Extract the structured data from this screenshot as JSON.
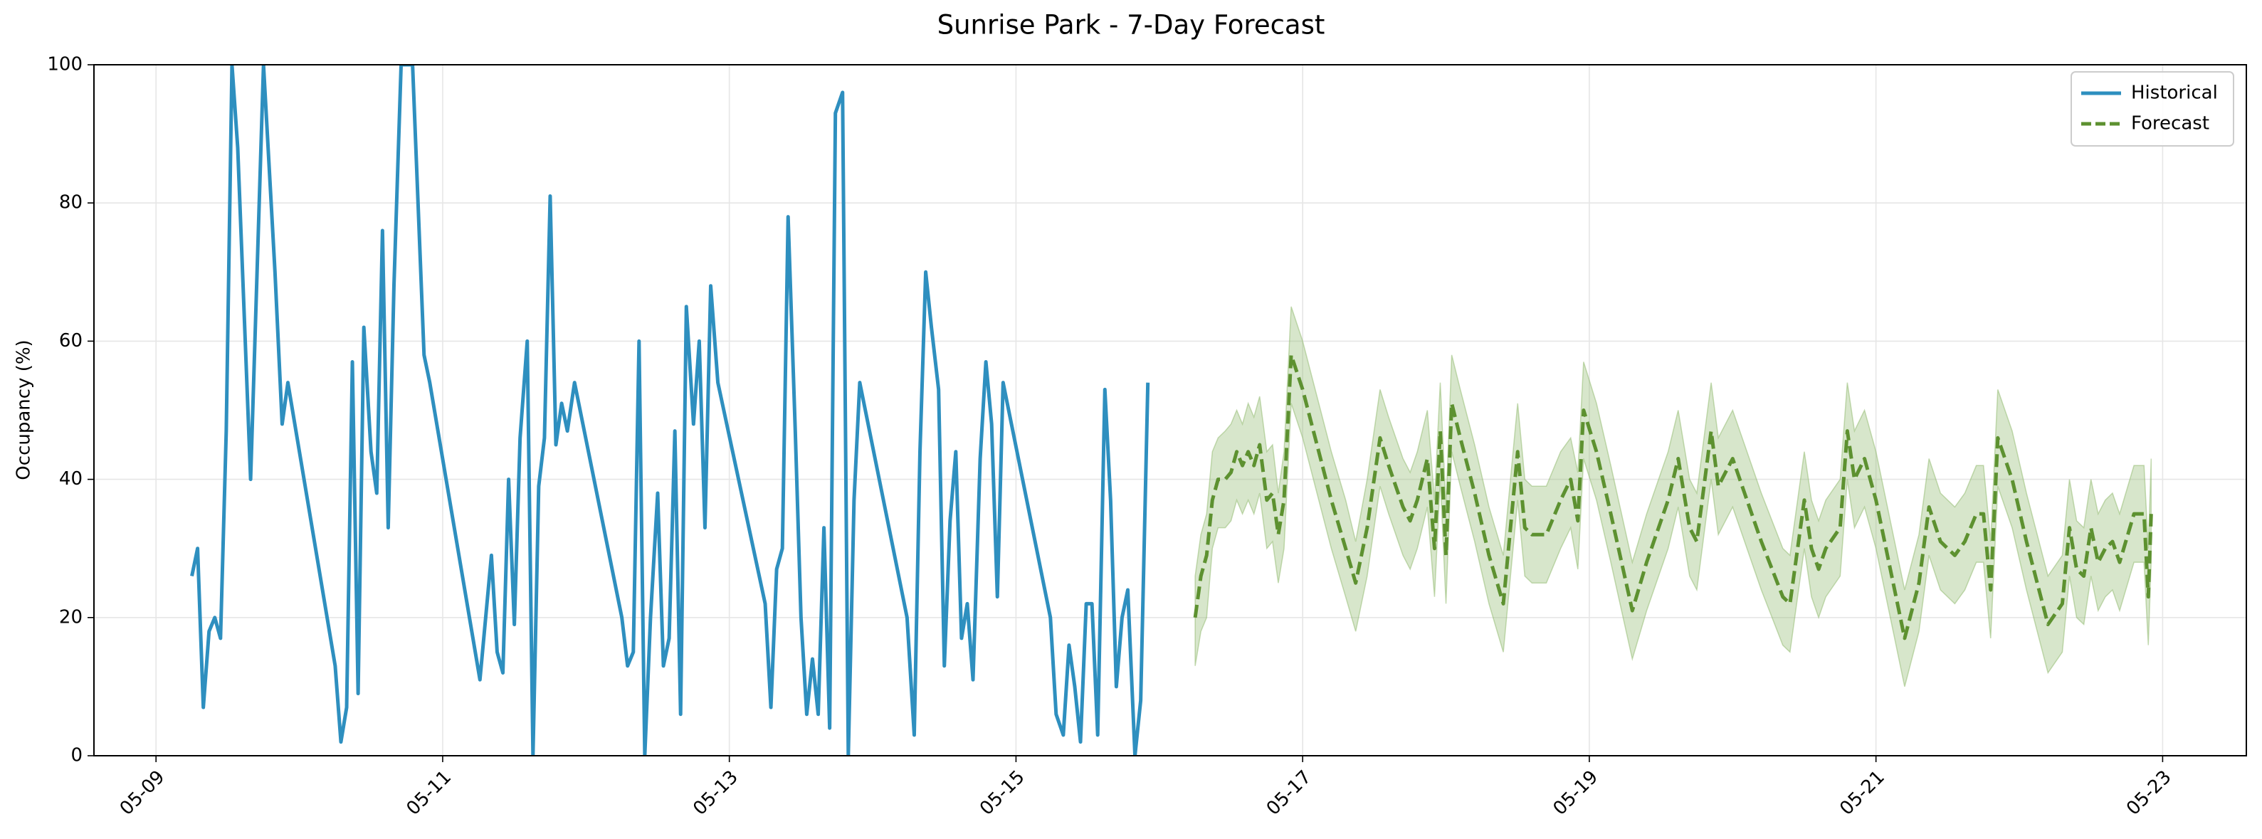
{
  "chart_data": {
    "type": "line",
    "title": "Sunrise Park - 7-Day Forecast",
    "ylabel": "Occupancy (%)",
    "xlim": [
      8.567,
      23.584
    ],
    "ylim": [
      0,
      100
    ],
    "xticks": [
      {
        "value": 9,
        "label": "05-09"
      },
      {
        "value": 11,
        "label": "05-11"
      },
      {
        "value": 13,
        "label": "05-13"
      },
      {
        "value": 15,
        "label": "05-15"
      },
      {
        "value": 17,
        "label": "05-17"
      },
      {
        "value": 19,
        "label": "05-19"
      },
      {
        "value": 21,
        "label": "05-21"
      },
      {
        "value": 23,
        "label": "05-23"
      }
    ],
    "yticks": [
      0,
      20,
      40,
      60,
      80,
      100
    ],
    "grid": true,
    "legend": "upper right",
    "series": [
      {
        "name": "Historical",
        "color": "#2e8fbf",
        "style": "solid",
        "x": [
          9.25,
          9.29,
          9.33,
          9.37,
          9.41,
          9.45,
          9.49,
          9.53,
          9.57,
          9.66,
          9.75,
          9.83,
          9.88,
          9.92,
          10.25,
          10.29,
          10.33,
          10.37,
          10.41,
          10.45,
          10.5,
          10.54,
          10.58,
          10.62,
          10.66,
          10.71,
          10.79,
          10.87,
          10.91,
          11.26,
          11.34,
          11.38,
          11.42,
          11.46,
          11.5,
          11.54,
          11.59,
          11.63,
          11.67,
          11.71,
          11.75,
          11.79,
          11.83,
          11.87,
          11.92,
          12.25,
          12.29,
          12.33,
          12.37,
          12.41,
          12.45,
          12.5,
          12.54,
          12.58,
          12.62,
          12.66,
          12.7,
          12.75,
          12.79,
          12.83,
          12.87,
          12.92,
          13.25,
          13.29,
          13.33,
          13.37,
          13.41,
          13.46,
          13.5,
          13.54,
          13.58,
          13.62,
          13.66,
          13.7,
          13.74,
          13.79,
          13.83,
          13.87,
          13.91,
          14.24,
          14.29,
          14.33,
          14.37,
          14.41,
          14.46,
          14.5,
          14.54,
          14.58,
          14.62,
          14.66,
          14.7,
          14.75,
          14.79,
          14.83,
          14.87,
          14.91,
          15.24,
          15.28,
          15.33,
          15.37,
          15.41,
          15.45,
          15.49,
          15.53,
          15.57,
          15.62,
          15.66,
          15.7,
          15.74,
          15.78,
          15.83,
          15.87,
          15.92
        ],
        "values": [
          26,
          30,
          7,
          18,
          20,
          17,
          47,
          100,
          88,
          40,
          100,
          70,
          48,
          54,
          13,
          2,
          7,
          57,
          9,
          62,
          44,
          38,
          76,
          33,
          68,
          100,
          100,
          58,
          54,
          11,
          29,
          15,
          12,
          40,
          19,
          46,
          60,
          0,
          39,
          46,
          81,
          45,
          51,
          47,
          54,
          20,
          13,
          15,
          60,
          0,
          20,
          38,
          13,
          17,
          47,
          6,
          65,
          48,
          60,
          33,
          68,
          54,
          22,
          7,
          27,
          30,
          78,
          47,
          20,
          6,
          14,
          6,
          33,
          4,
          93,
          96,
          0,
          37,
          54,
          20,
          3,
          44,
          70,
          62,
          53,
          13,
          34,
          44,
          17,
          22,
          11,
          43,
          57,
          48,
          23,
          54,
          20,
          6,
          3,
          16,
          10,
          2,
          22,
          22,
          3,
          53,
          37,
          10,
          20,
          24,
          0,
          8,
          54
        ]
      },
      {
        "name": "Forecast",
        "color": "#5d9130",
        "style": "dashed",
        "band_color": "#8db86a",
        "x": [
          16.25,
          16.29,
          16.33,
          16.37,
          16.41,
          16.46,
          16.5,
          16.54,
          16.58,
          16.62,
          16.66,
          16.7,
          16.75,
          16.79,
          16.83,
          16.87,
          16.92,
          17.0,
          17.1,
          17.2,
          17.3,
          17.37,
          17.45,
          17.54,
          17.6,
          17.7,
          17.75,
          17.8,
          17.87,
          17.92,
          17.96,
          18.0,
          18.04,
          18.1,
          18.2,
          18.3,
          18.4,
          18.5,
          18.55,
          18.6,
          18.7,
          18.8,
          18.87,
          18.92,
          18.96,
          19.05,
          19.15,
          19.3,
          19.4,
          19.55,
          19.62,
          19.7,
          19.75,
          19.85,
          19.9,
          19.95,
          20.0,
          20.1,
          20.2,
          20.35,
          20.4,
          20.5,
          20.55,
          20.6,
          20.65,
          20.75,
          20.8,
          20.85,
          20.92,
          21.0,
          21.1,
          21.2,
          21.3,
          21.37,
          21.45,
          21.55,
          21.62,
          21.7,
          21.75,
          21.8,
          21.85,
          21.95,
          22.05,
          22.15,
          22.2,
          22.3,
          22.35,
          22.4,
          22.45,
          22.5,
          22.55,
          22.6,
          22.65,
          22.7,
          22.8,
          22.87,
          22.9,
          22.92
        ],
        "values": [
          20,
          26,
          29,
          37,
          40,
          40,
          41,
          44,
          42,
          44,
          42,
          45,
          37,
          38,
          32,
          37,
          58,
          53,
          45,
          37,
          30,
          25,
          33,
          46,
          42,
          36,
          34,
          37,
          43,
          30,
          47,
          29,
          51,
          46,
          38,
          29,
          22,
          44,
          33,
          32,
          32,
          37,
          40,
          34,
          50,
          44,
          35,
          21,
          28,
          37,
          43,
          33,
          31,
          47,
          39,
          41,
          43,
          37,
          31,
          23,
          22,
          37,
          30,
          27,
          30,
          33,
          47,
          40,
          43,
          37,
          27,
          17,
          25,
          36,
          31,
          29,
          31,
          35,
          35,
          24,
          46,
          40,
          31,
          23,
          19,
          22,
          33,
          27,
          26,
          33,
          28,
          30,
          31,
          28,
          35,
          35,
          23,
          35
        ],
        "lower": [
          13,
          18,
          20,
          30,
          33,
          33,
          34,
          37,
          35,
          37,
          35,
          38,
          30,
          31,
          25,
          30,
          51,
          46,
          38,
          30,
          23,
          18,
          26,
          39,
          35,
          29,
          27,
          30,
          36,
          23,
          40,
          22,
          44,
          39,
          31,
          22,
          15,
          37,
          26,
          25,
          25,
          30,
          33,
          27,
          43,
          37,
          28,
          14,
          21,
          30,
          36,
          26,
          24,
          40,
          32,
          34,
          36,
          30,
          24,
          16,
          15,
          30,
          23,
          20,
          23,
          26,
          40,
          33,
          36,
          30,
          20,
          10,
          18,
          29,
          24,
          22,
          24,
          28,
          28,
          17,
          39,
          33,
          24,
          16,
          12,
          15,
          26,
          20,
          19,
          26,
          21,
          23,
          24,
          21,
          28,
          28,
          16,
          28
        ],
        "upper": [
          26,
          32,
          35,
          44,
          46,
          47,
          48,
          50,
          48,
          51,
          49,
          52,
          44,
          45,
          38,
          44,
          65,
          60,
          52,
          44,
          37,
          31,
          40,
          53,
          49,
          43,
          41,
          44,
          50,
          37,
          54,
          36,
          58,
          53,
          45,
          36,
          29,
          51,
          40,
          39,
          39,
          44,
          46,
          41,
          57,
          51,
          42,
          28,
          35,
          44,
          50,
          40,
          38,
          54,
          46,
          48,
          50,
          44,
          38,
          30,
          29,
          44,
          37,
          34,
          37,
          40,
          54,
          47,
          50,
          44,
          34,
          24,
          32,
          43,
          38,
          36,
          38,
          42,
          42,
          31,
          53,
          47,
          38,
          30,
          26,
          29,
          40,
          34,
          33,
          40,
          35,
          37,
          38,
          35,
          42,
          42,
          30,
          43
        ]
      }
    ]
  }
}
